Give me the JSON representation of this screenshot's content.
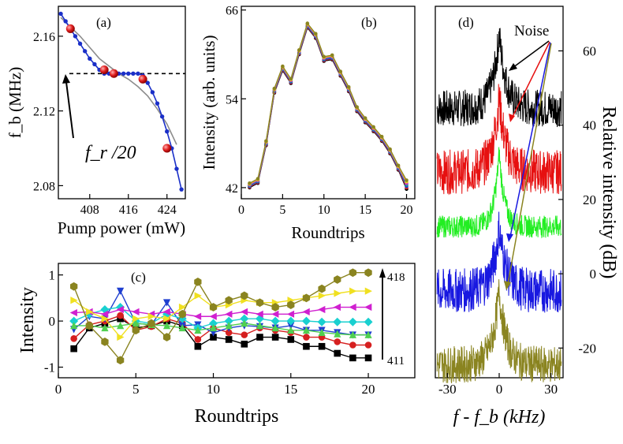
{
  "chart_data": [
    {
      "panel": "(a)",
      "type": "line",
      "xlabel": "Pump power (mW)",
      "ylabel": "f_b (MHz)",
      "xlim": [
        401.5,
        427.8
      ],
      "ylim": [
        2.073,
        2.176
      ],
      "xticks": [
        408,
        416,
        424
      ],
      "yticks": [
        2.08,
        2.12,
        2.16
      ],
      "annotation": "f_r /20",
      "reference_line": {
        "y": 2.14,
        "style": "dashed"
      },
      "series": [
        {
          "style": "blue-dots",
          "x": [
            402,
            403,
            404,
            405,
            406,
            407,
            408,
            409,
            410,
            411,
            412,
            413,
            414,
            415,
            416,
            417,
            418,
            419,
            420,
            421,
            422,
            423,
            424,
            425,
            426,
            427
          ],
          "y": [
            2.172,
            2.168,
            2.164,
            2.16,
            2.156,
            2.152,
            2.148,
            2.145,
            2.142,
            2.14,
            2.14,
            2.14,
            2.14,
            2.14,
            2.14,
            2.14,
            2.14,
            2.139,
            2.135,
            2.13,
            2.124,
            2.117,
            2.109,
            2.1,
            2.089,
            2.078
          ]
        },
        {
          "style": "gray-fit",
          "x": [
            402,
            404,
            406,
            408,
            410,
            412,
            414,
            416,
            418,
            420,
            422,
            424,
            426
          ],
          "y": [
            2.17,
            2.165,
            2.16,
            2.154,
            2.148,
            2.144,
            2.14,
            2.137,
            2.133,
            2.128,
            2.121,
            2.113,
            2.102
          ]
        },
        {
          "style": "red-spheres",
          "x": [
            404,
            411,
            413,
            419,
            424
          ],
          "y": [
            2.164,
            2.142,
            2.14,
            2.137,
            2.1
          ]
        }
      ]
    },
    {
      "panel": "(b)",
      "type": "line",
      "xlabel": "Roundtrips",
      "ylabel": "Intensity (arb. units)",
      "xlim": [
        0,
        21
      ],
      "ylim": [
        40.5,
        66.5
      ],
      "xticks": [
        0,
        5,
        10,
        15,
        20
      ],
      "yticks": [
        42,
        54,
        66
      ],
      "x": [
        1,
        2,
        3,
        4,
        5,
        6,
        7,
        8,
        9,
        10,
        11,
        12,
        13,
        14,
        15,
        16,
        17,
        18,
        19,
        20
      ],
      "series": [
        {
          "color": "#000000",
          "values": [
            42,
            42.6,
            47.7,
            54.8,
            57.8,
            56.1,
            60,
            63.6,
            62.2,
            59.1,
            59.3,
            57.1,
            55,
            52.3,
            50.8,
            49.6,
            48.3,
            46.6,
            44.4,
            41.8
          ]
        },
        {
          "color": "#d62020",
          "values": [
            42.1,
            42.7,
            47.8,
            54.9,
            57.9,
            56.2,
            60.1,
            63.7,
            62.3,
            59.2,
            59.4,
            57.2,
            55.1,
            52.4,
            50.9,
            49.7,
            48.4,
            46.7,
            44.5,
            42
          ]
        },
        {
          "color": "#1f3fd0",
          "values": [
            42.2,
            42.8,
            47.9,
            55,
            58,
            56.3,
            60.2,
            63.8,
            62.4,
            59.3,
            59.5,
            57.3,
            55.2,
            52.5,
            51,
            49.8,
            48.5,
            46.8,
            44.6,
            42.2
          ]
        },
        {
          "color": "#19a090",
          "values": [
            42.3,
            42.9,
            48,
            55.1,
            58.1,
            56.4,
            60.3,
            63.9,
            62.5,
            59.4,
            59.6,
            57.4,
            55.3,
            52.6,
            51.1,
            49.9,
            48.6,
            46.9,
            44.7,
            42.4
          ]
        },
        {
          "color": "#d020d0",
          "values": [
            42.4,
            43,
            48.1,
            55.2,
            58.2,
            56.5,
            60.4,
            64,
            62.6,
            59.5,
            59.7,
            57.5,
            55.4,
            52.7,
            51.2,
            50,
            48.7,
            47,
            44.8,
            42.6
          ]
        },
        {
          "color": "#e8d020",
          "values": [
            42.5,
            43.1,
            48.2,
            55.3,
            58.3,
            56.6,
            60.5,
            64.1,
            62.7,
            59.6,
            59.8,
            57.6,
            55.5,
            52.8,
            51.3,
            50.1,
            48.8,
            47.1,
            44.9,
            42.8
          ]
        },
        {
          "color": "#8a8420",
          "values": [
            42.6,
            43.2,
            48.3,
            55.4,
            58.4,
            56.7,
            60.6,
            64.2,
            62.8,
            59.7,
            59.9,
            57.7,
            55.6,
            52.9,
            51.4,
            50.2,
            48.9,
            47.2,
            45,
            43
          ]
        }
      ]
    },
    {
      "panel": "(c)",
      "type": "line",
      "xlabel": "Roundtrips",
      "ylabel": "Intensity",
      "xlim": [
        0,
        23
      ],
      "ylim": [
        -1.23,
        1.25
      ],
      "xticks": [
        0,
        5,
        10,
        15,
        20
      ],
      "yticks": [
        -1,
        0,
        1
      ],
      "arrow_labels": {
        "top": "418",
        "bottom": "411"
      },
      "x": [
        1,
        2,
        3,
        4,
        5,
        6,
        7,
        8,
        9,
        10,
        11,
        12,
        13,
        14,
        15,
        16,
        17,
        18,
        19,
        20
      ],
      "series": [
        {
          "color": "#000000",
          "marker": "square",
          "values": [
            -0.6,
            -0.15,
            -0.05,
            0.05,
            -0.15,
            -0.1,
            0,
            -0.1,
            -0.55,
            -0.35,
            -0.4,
            -0.5,
            -0.35,
            -0.35,
            -0.4,
            -0.55,
            -0.55,
            -0.7,
            -0.8,
            -0.8
          ]
        },
        {
          "color": "#d62020",
          "marker": "circle",
          "values": [
            -0.38,
            -0.08,
            0,
            0.12,
            -0.2,
            -0.12,
            0.05,
            -0.05,
            -0.4,
            -0.15,
            -0.25,
            -0.3,
            -0.15,
            -0.2,
            -0.25,
            -0.35,
            -0.35,
            -0.45,
            -0.52,
            -0.52
          ]
        },
        {
          "color": "#1f3fd0",
          "marker": "triangle-down",
          "values": [
            -0.18,
            0.1,
            0.05,
            0.65,
            -0.05,
            -0.08,
            0.4,
            -0.1,
            -0.08,
            -0.25,
            -0.15,
            -0.1,
            -0.12,
            -0.15,
            -0.1,
            -0.2,
            -0.2,
            -0.25,
            -0.3,
            -0.3
          ]
        },
        {
          "color": "#19d0d0",
          "marker": "diamond",
          "values": [
            0,
            0.15,
            0.25,
            0.3,
            0,
            -0.05,
            0.15,
            0.05,
            -0.15,
            -0.05,
            0,
            0.05,
            0.05,
            0,
            0,
            0,
            -0.02,
            -0.02,
            -0.02,
            -0.02
          ]
        },
        {
          "color": "#d020d0",
          "marker": "triangle-left",
          "values": [
            0.18,
            0.2,
            0.15,
            0.25,
            0.2,
            0.15,
            0.2,
            0.15,
            0.1,
            0.1,
            0.15,
            0.2,
            0.15,
            0.15,
            0.15,
            0.2,
            0.25,
            0.3,
            0.3,
            0.3
          ]
        },
        {
          "color": "#50d050",
          "marker": "triangle-up",
          "values": [
            -0.1,
            -0.1,
            -0.15,
            -0.1,
            -0.05,
            -0.08,
            -0.1,
            -0.15,
            -0.2,
            -0.15,
            -0.1,
            -0.05,
            -0.1,
            -0.15,
            -0.2,
            -0.2,
            -0.25,
            -0.28,
            -0.3,
            -0.3
          ]
        },
        {
          "color": "#f0e020",
          "marker": "triangle-right",
          "values": [
            0.45,
            0.2,
            0.05,
            -0.35,
            0.05,
            0.1,
            0.05,
            0.3,
            0.55,
            0.3,
            0.35,
            0.45,
            0.4,
            0.4,
            0.45,
            0.5,
            0.55,
            0.6,
            0.65,
            0.65
          ]
        },
        {
          "color": "#8a8420",
          "marker": "hexagon",
          "values": [
            0.75,
            -0.1,
            -0.45,
            -0.85,
            -0.2,
            -0.05,
            -0.35,
            0.15,
            0.85,
            0.3,
            0.45,
            0.55,
            0.4,
            0.3,
            0.35,
            0.5,
            0.7,
            0.9,
            1.05,
            1.05
          ]
        }
      ]
    },
    {
      "panel": "(d)",
      "type": "spectrum",
      "xlabel": "f - f_b (kHz)",
      "ylabel": "Relative intensity (dB)",
      "xlim": [
        -37,
        37
      ],
      "ylim": [
        -28,
        72
      ],
      "xticks": [
        -30,
        0,
        30
      ],
      "yticks": [
        -20,
        0,
        20,
        40,
        60
      ],
      "annotation": "Noise",
      "traces": [
        {
          "color": "#000000",
          "baseline": 45,
          "peak": 65,
          "width": 4,
          "noise": 5
        },
        {
          "color": "#e61010",
          "baseline": 28,
          "peak": 48,
          "width": 4,
          "noise": 6
        },
        {
          "color": "#22ee22",
          "baseline": 13,
          "peak": 33,
          "width": 3,
          "noise": 3
        },
        {
          "color": "#1818e0",
          "baseline": -4,
          "peak": 13,
          "width": 4,
          "noise": 6
        },
        {
          "color": "#8a8420",
          "baseline": -24,
          "peak": -4,
          "width": 4,
          "noise": 5
        }
      ]
    }
  ]
}
